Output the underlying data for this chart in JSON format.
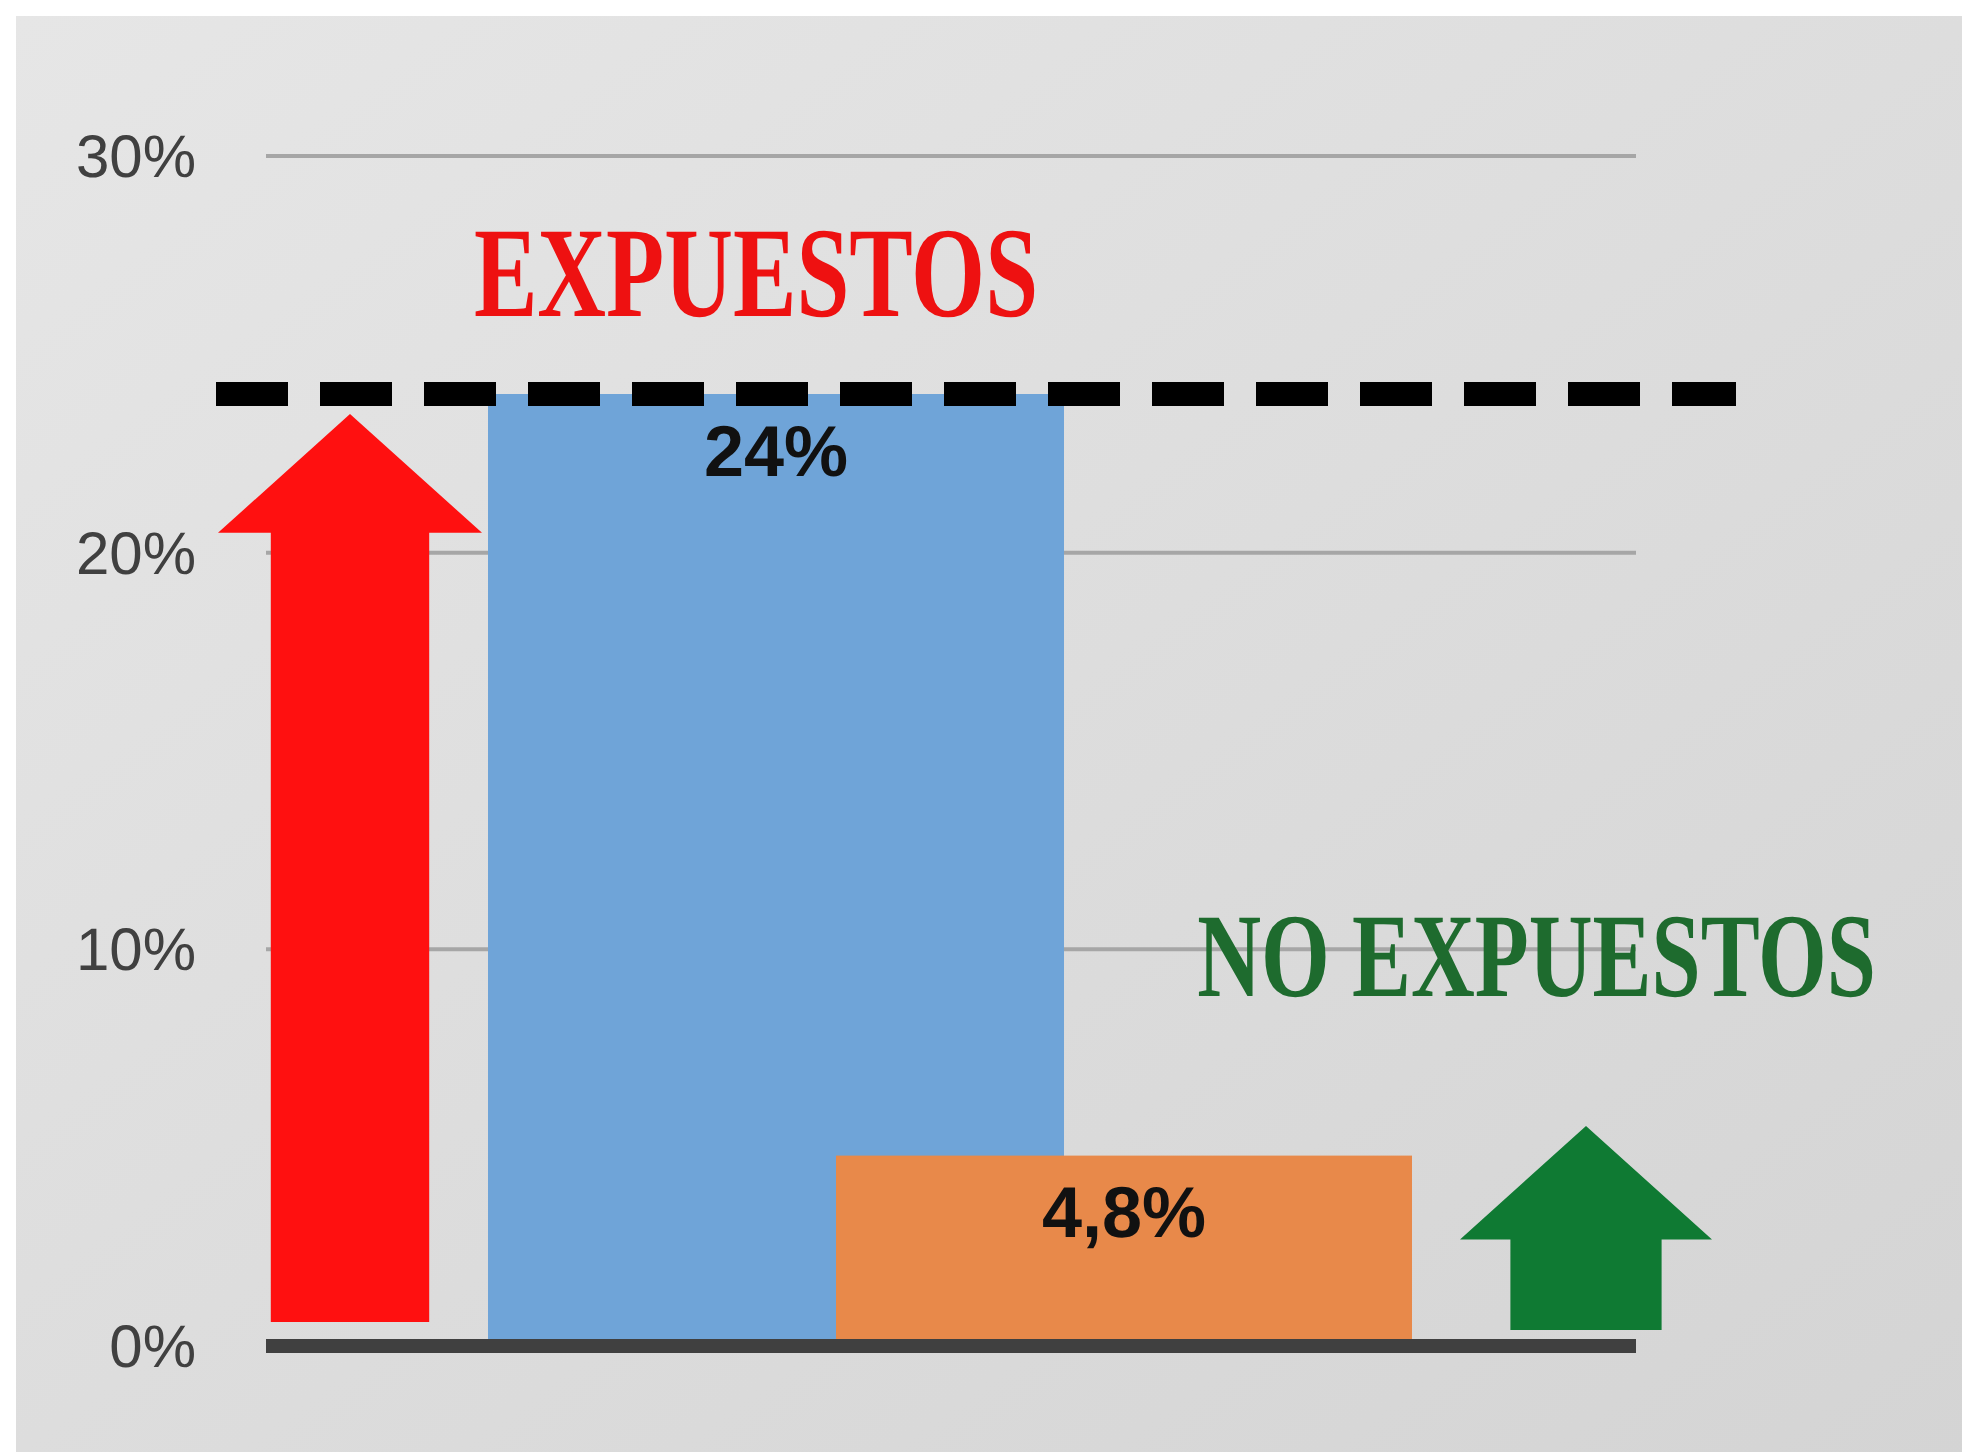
{
  "chart_data": {
    "type": "bar",
    "categories": [
      null,
      null
    ],
    "values": [
      24,
      4.8
    ],
    "colors": [
      "#6fa4d8",
      "#e8894a"
    ],
    "value_labels": [
      "24%",
      "4,8%"
    ],
    "ylim": [
      0,
      30
    ],
    "yticks": [
      {
        "value": 0,
        "label": "0%"
      },
      {
        "value": 10,
        "label": "10%"
      },
      {
        "value": 20,
        "label": "20%"
      },
      {
        "value": 30,
        "label": "30%"
      }
    ],
    "grid": "y",
    "ref_lines": [
      {
        "axis": "y",
        "value": 24,
        "color": "#000000",
        "line_style": "dashed"
      }
    ],
    "annotations": [
      "EXPUESTOS",
      "NO EXPUESTOS"
    ]
  }
}
